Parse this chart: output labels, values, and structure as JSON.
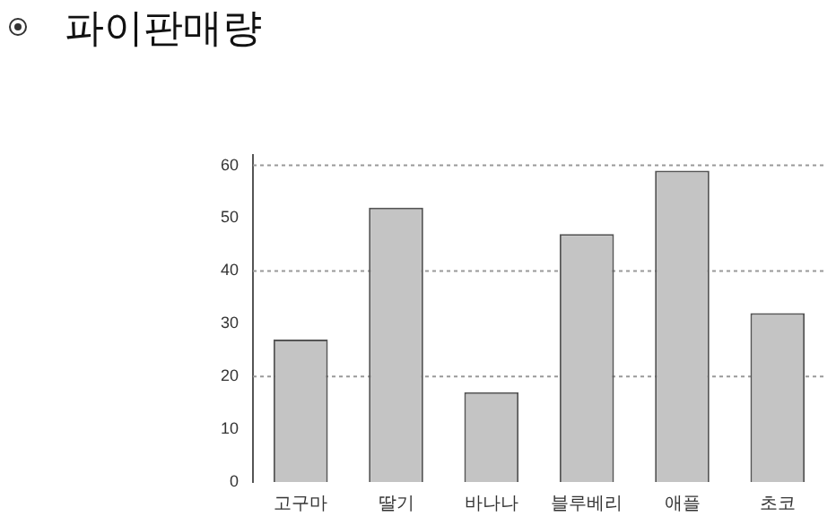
{
  "chart_data": {
    "type": "bar",
    "title": "파이판매량",
    "categories": [
      "고구마",
      "딸기",
      "바나나",
      "블루베리",
      "애플",
      "초코"
    ],
    "values": [
      27,
      52,
      17,
      47,
      59,
      32
    ],
    "color": "#c4c4c4",
    "ylim": [
      0,
      62
    ],
    "yticks": [
      0,
      10,
      20,
      30,
      40,
      50,
      60
    ],
    "grid": false,
    "ref_lines": [
      {
        "axis": "y",
        "value": 20,
        "color": "#999999",
        "line_style": "dotted"
      },
      {
        "axis": "y",
        "value": 40,
        "color": "#999999",
        "line_style": "dotted"
      },
      {
        "axis": "y",
        "value": 60,
        "color": "#999999",
        "line_style": "dotted"
      }
    ]
  }
}
